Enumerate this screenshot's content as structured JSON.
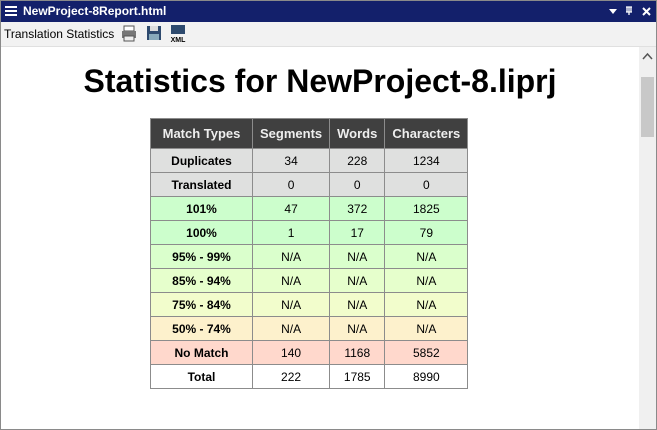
{
  "window": {
    "title": "NewProject-8Report.html"
  },
  "toolbar": {
    "label": "Translation Statistics",
    "xml_icon": "XML"
  },
  "report": {
    "heading": "Statistics for NewProject-8.liprj",
    "table": {
      "header": [
        "Match Types",
        "Segments",
        "Words",
        "Characters"
      ],
      "rows": [
        [
          "Duplicates",
          "34",
          "228",
          "1234"
        ],
        [
          "Translated",
          "0",
          "0",
          "0"
        ],
        [
          "101%",
          "47",
          "372",
          "1825"
        ],
        [
          "100%",
          "1",
          "17",
          "79"
        ],
        [
          "95% - 99%",
          "N/A",
          "N/A",
          "N/A"
        ],
        [
          "85% - 94%",
          "N/A",
          "N/A",
          "N/A"
        ],
        [
          "75% - 84%",
          "N/A",
          "N/A",
          "N/A"
        ],
        [
          "50% - 74%",
          "N/A",
          "N/A",
          "N/A"
        ],
        [
          "No Match",
          "140",
          "1168",
          "5852"
        ],
        [
          "Total",
          "222",
          "1785",
          "8990"
        ]
      ]
    }
  }
}
